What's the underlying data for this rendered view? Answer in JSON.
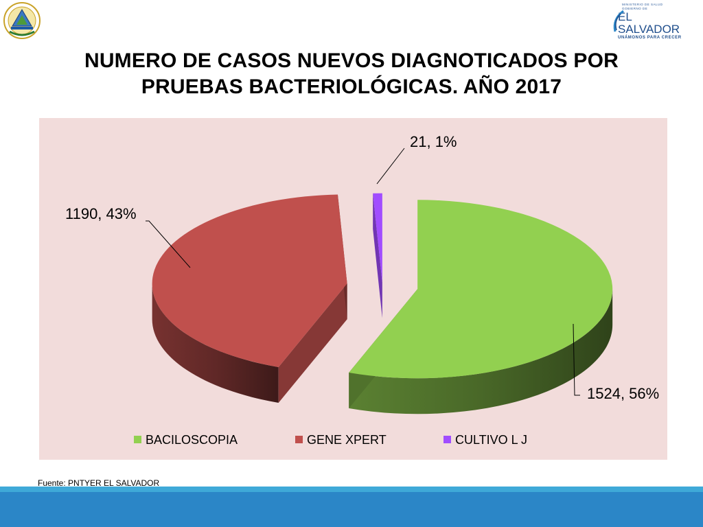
{
  "header": {
    "ministry_small": "MINISTERIO DE SALUD",
    "government_small": "GOBIERNO DE",
    "country": "EL SALVADOR",
    "slogan": "UNÁMONOS PARA CRECER"
  },
  "title_lines": [
    "NUMERO DE CASOS NUEVOS DIAGNOTICADOS POR",
    "PRUEBAS BACTERIOLÓGICAS. AÑO 2017"
  ],
  "source": "Fuente: PNTYER EL SALVADOR",
  "colors": {
    "chart_background": "#f2dcdb",
    "band_light": "#3fa9d8",
    "band_dark": "#2b86c7"
  },
  "chart_data": {
    "type": "pie",
    "style": "3d-exploded",
    "title": "",
    "legend_position": "bottom",
    "slices": [
      {
        "label": "BACILOSCOPIA",
        "value": 1524,
        "percent": "56%",
        "color": "#92d050",
        "data_label": "1524, 56%"
      },
      {
        "label": "GENE XPERT",
        "value": 1190,
        "percent": "43%",
        "color": "#c0504d",
        "data_label": "1190, 43%"
      },
      {
        "label": "CULTIVO L J",
        "value": 21,
        "percent": "1%",
        "color": "#a14dff",
        "data_label": "21, 1%"
      }
    ]
  }
}
